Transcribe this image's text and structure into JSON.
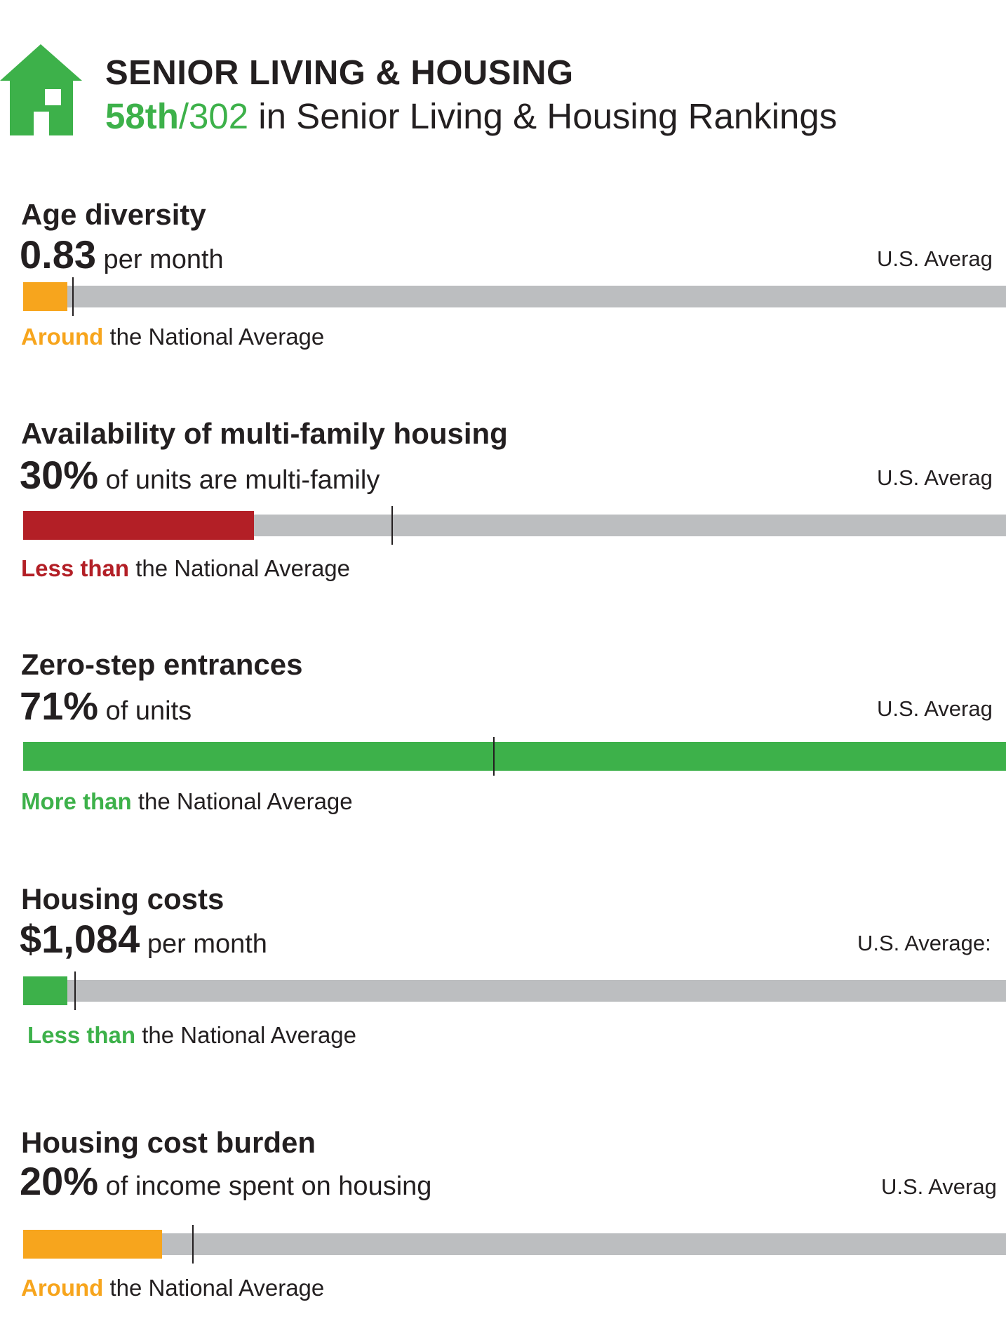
{
  "header": {
    "title": "SENIOR LIVING & HOUSING",
    "rank_place": "58th",
    "rank_separator": "/",
    "rank_total": "302",
    "rank_suffix": " in Senior Living & Housing Rankings",
    "icon": "house-icon",
    "icon_color": "#3db14a"
  },
  "colors": {
    "green": "#3db14a",
    "orange": "#f7a51d",
    "red": "#b31f26",
    "track": "#bcbec0",
    "text": "#231f20"
  },
  "metrics": [
    {
      "label": "Age diversity",
      "value": "0.83",
      "unit": " per month",
      "us_average": "U.S. Averag",
      "bar_fraction": 0.045,
      "average_fraction": 0.05,
      "bar_color": "#f7a51d",
      "comparison_word": "Around",
      "comparison_rest": " the National Average",
      "comparison_color": "#f7a51d"
    },
    {
      "label": "Availability of multi-family housing",
      "value": "30%",
      "unit": " of units are multi-family",
      "us_average": "U.S. Averag",
      "bar_fraction": 0.235,
      "average_fraction": 0.375,
      "bar_color": "#b31f26",
      "comparison_word": "Less than",
      "comparison_rest": " the National Average",
      "comparison_color": "#b31f26"
    },
    {
      "label": "Zero-step entrances",
      "value": "71%",
      "unit": " of units",
      "us_average": "U.S. Averag",
      "bar_fraction": 1.0,
      "average_fraction": 0.478,
      "bar_color": "#3db14a",
      "comparison_word": "More than",
      "comparison_rest": " the National Average",
      "comparison_color": "#3db14a"
    },
    {
      "label": "Housing costs",
      "value": "$1,084",
      "unit": " per month",
      "us_average": "U.S. Average:",
      "bar_fraction": 0.045,
      "average_fraction": 0.052,
      "bar_color": "#3db14a",
      "comparison_word": "Less than",
      "comparison_rest": " the National Average",
      "comparison_color": "#3db14a"
    },
    {
      "label": "Housing cost burden",
      "value": "20%",
      "unit": " of income spent on housing",
      "us_average": "U.S. Averag",
      "bar_fraction": 0.141,
      "average_fraction": 0.172,
      "bar_color": "#f7a51d",
      "comparison_word": "Around",
      "comparison_rest": " the National Average",
      "comparison_color": "#f7a51d"
    }
  ]
}
